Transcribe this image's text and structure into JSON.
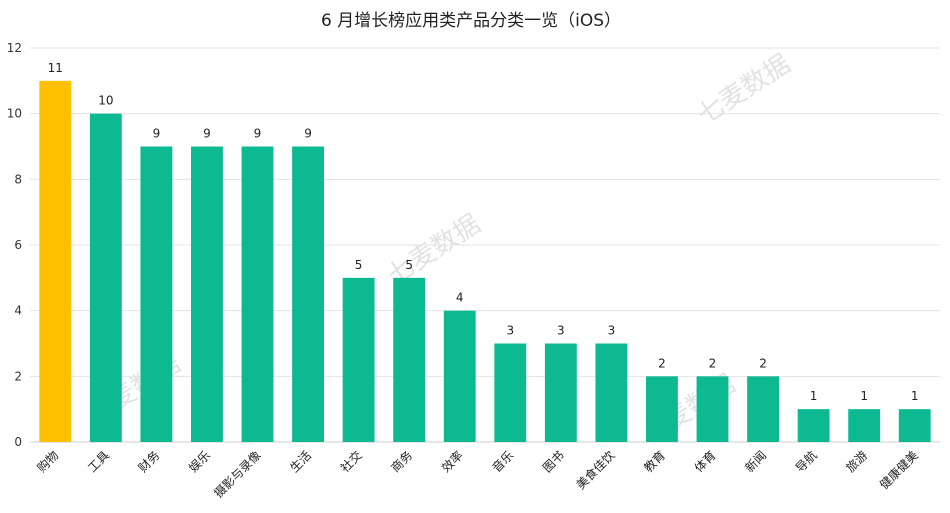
{
  "chart_data": {
    "type": "bar",
    "title": "6 月增长榜应用类产品分类一览（iOS）",
    "categories": [
      "购物",
      "工具",
      "财务",
      "娱乐",
      "摄影与录像",
      "生活",
      "社交",
      "商务",
      "效率",
      "音乐",
      "图书",
      "美食佳饮",
      "教育",
      "体育",
      "新闻",
      "导航",
      "旅游",
      "健康健美"
    ],
    "values": [
      11,
      10,
      9,
      9,
      9,
      9,
      5,
      5,
      4,
      3,
      3,
      3,
      2,
      2,
      2,
      1,
      1,
      1
    ],
    "xlabel": "",
    "ylabel": "",
    "ylim": [
      0,
      12
    ],
    "yticks": [
      0,
      2,
      4,
      6,
      8,
      10,
      12
    ],
    "grid": true,
    "legend": "none",
    "colors": {
      "highlight": "#FFC000",
      "default": "#0DB991"
    },
    "highlight_index": 0
  },
  "watermark": "七麦数据"
}
